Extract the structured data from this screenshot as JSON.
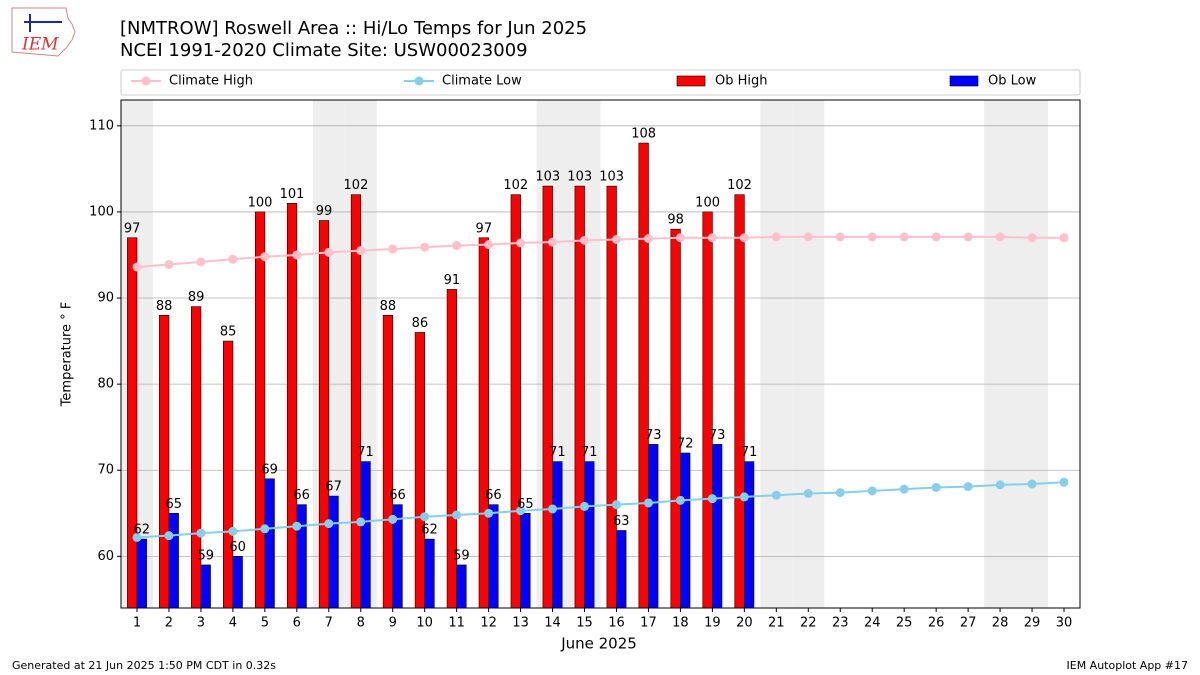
{
  "logo": {
    "text": "IEM"
  },
  "footer": {
    "left": "Generated at 21 Jun 2025 1:50 PM CDT in 0.32s",
    "right": "IEM Autoplot App #17"
  },
  "chart_data": {
    "type": "bar",
    "title": "[NMTROW] Roswell Area :: Hi/Lo Temps for Jun 2025",
    "subtitle": "NCEI 1991-2020 Climate Site: USW00023009",
    "x_label": "June 2025",
    "y_label": "Temperature ° F",
    "x": [
      1,
      2,
      3,
      4,
      5,
      6,
      7,
      8,
      9,
      10,
      11,
      12,
      13,
      14,
      15,
      16,
      17,
      18,
      19,
      20,
      21,
      22,
      23,
      24,
      25,
      26,
      27,
      28,
      29,
      30
    ],
    "xlim": [
      0.5,
      30.5
    ],
    "xticks": [
      1,
      2,
      3,
      4,
      5,
      6,
      7,
      8,
      9,
      10,
      11,
      12,
      13,
      14,
      15,
      16,
      17,
      18,
      19,
      20,
      21,
      22,
      23,
      24,
      25,
      26,
      27,
      28,
      29,
      30
    ],
    "ylim": [
      54,
      113
    ],
    "yticks": [
      60,
      70,
      80,
      90,
      100,
      110
    ],
    "grid": true,
    "legend": "top",
    "shaded_days": [
      1,
      7,
      8,
      14,
      15,
      21,
      22,
      28,
      29
    ],
    "series": [
      {
        "name": "Climate High",
        "type": "line",
        "color": "#ffc0cb",
        "values": [
          93.6,
          93.9,
          94.2,
          94.5,
          94.8,
          95.0,
          95.3,
          95.5,
          95.7,
          95.9,
          96.1,
          96.2,
          96.4,
          96.5,
          96.7,
          96.8,
          96.9,
          97.0,
          97.0,
          97.0,
          97.1,
          97.1,
          97.1,
          97.1,
          97.1,
          97.1,
          97.1,
          97.1,
          97.0,
          97.0
        ]
      },
      {
        "name": "Climate Low",
        "type": "line",
        "color": "#87ceeb",
        "values": [
          62.2,
          62.4,
          62.7,
          62.9,
          63.2,
          63.5,
          63.8,
          64.0,
          64.3,
          64.6,
          64.8,
          65.0,
          65.3,
          65.5,
          65.8,
          66.0,
          66.2,
          66.5,
          66.7,
          66.9,
          67.1,
          67.3,
          67.4,
          67.6,
          67.8,
          68.0,
          68.1,
          68.3,
          68.4,
          68.6
        ]
      },
      {
        "name": "Ob High",
        "type": "bar",
        "color": "#ff0000",
        "values": [
          97,
          88,
          89,
          85,
          100,
          101,
          99,
          102,
          88,
          86,
          91,
          97,
          102,
          103,
          103,
          103,
          108,
          98,
          100,
          102,
          null,
          null,
          null,
          null,
          null,
          null,
          null,
          null,
          null,
          null
        ]
      },
      {
        "name": "Ob Low",
        "type": "bar",
        "color": "#0000ff",
        "values": [
          62,
          65,
          59,
          60,
          69,
          66,
          67,
          71,
          66,
          62,
          59,
          66,
          65,
          71,
          71,
          63,
          73,
          72,
          73,
          71,
          null,
          null,
          null,
          null,
          null,
          null,
          null,
          null,
          null,
          null
        ]
      }
    ]
  }
}
